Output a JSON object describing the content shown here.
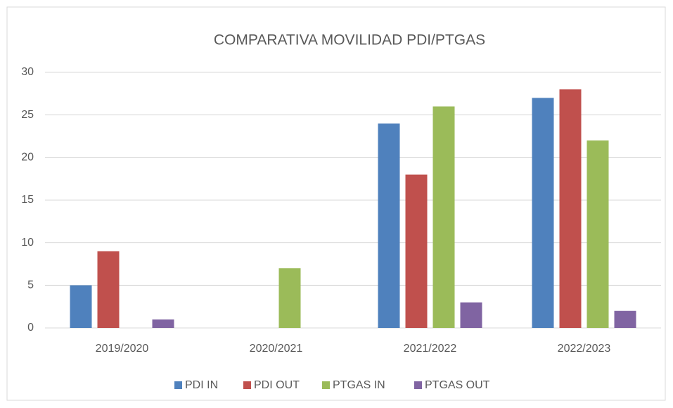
{
  "chart_data": {
    "type": "bar",
    "title": "COMPARATIVA MOVILIDAD PDI/PTGAS",
    "categories": [
      "2019/2020",
      "2020/2021",
      "2021/2022",
      "2022/2023"
    ],
    "series": [
      {
        "name": "PDI IN",
        "color": "#4f81bd",
        "values": [
          5,
          0,
          24,
          27
        ]
      },
      {
        "name": "PDI OUT",
        "color": "#c0504d",
        "values": [
          9,
          0,
          18,
          28
        ]
      },
      {
        "name": "PTGAS IN",
        "color": "#9bbb59",
        "values": [
          0,
          7,
          26,
          22
        ]
      },
      {
        "name": "PTGAS OUT",
        "color": "#8064a2",
        "values": [
          1,
          0,
          3,
          2
        ]
      }
    ],
    "ylim": [
      0,
      30
    ],
    "yticks": [
      0,
      5,
      10,
      15,
      20,
      25,
      30
    ],
    "grid": true,
    "legend": "bottom"
  }
}
